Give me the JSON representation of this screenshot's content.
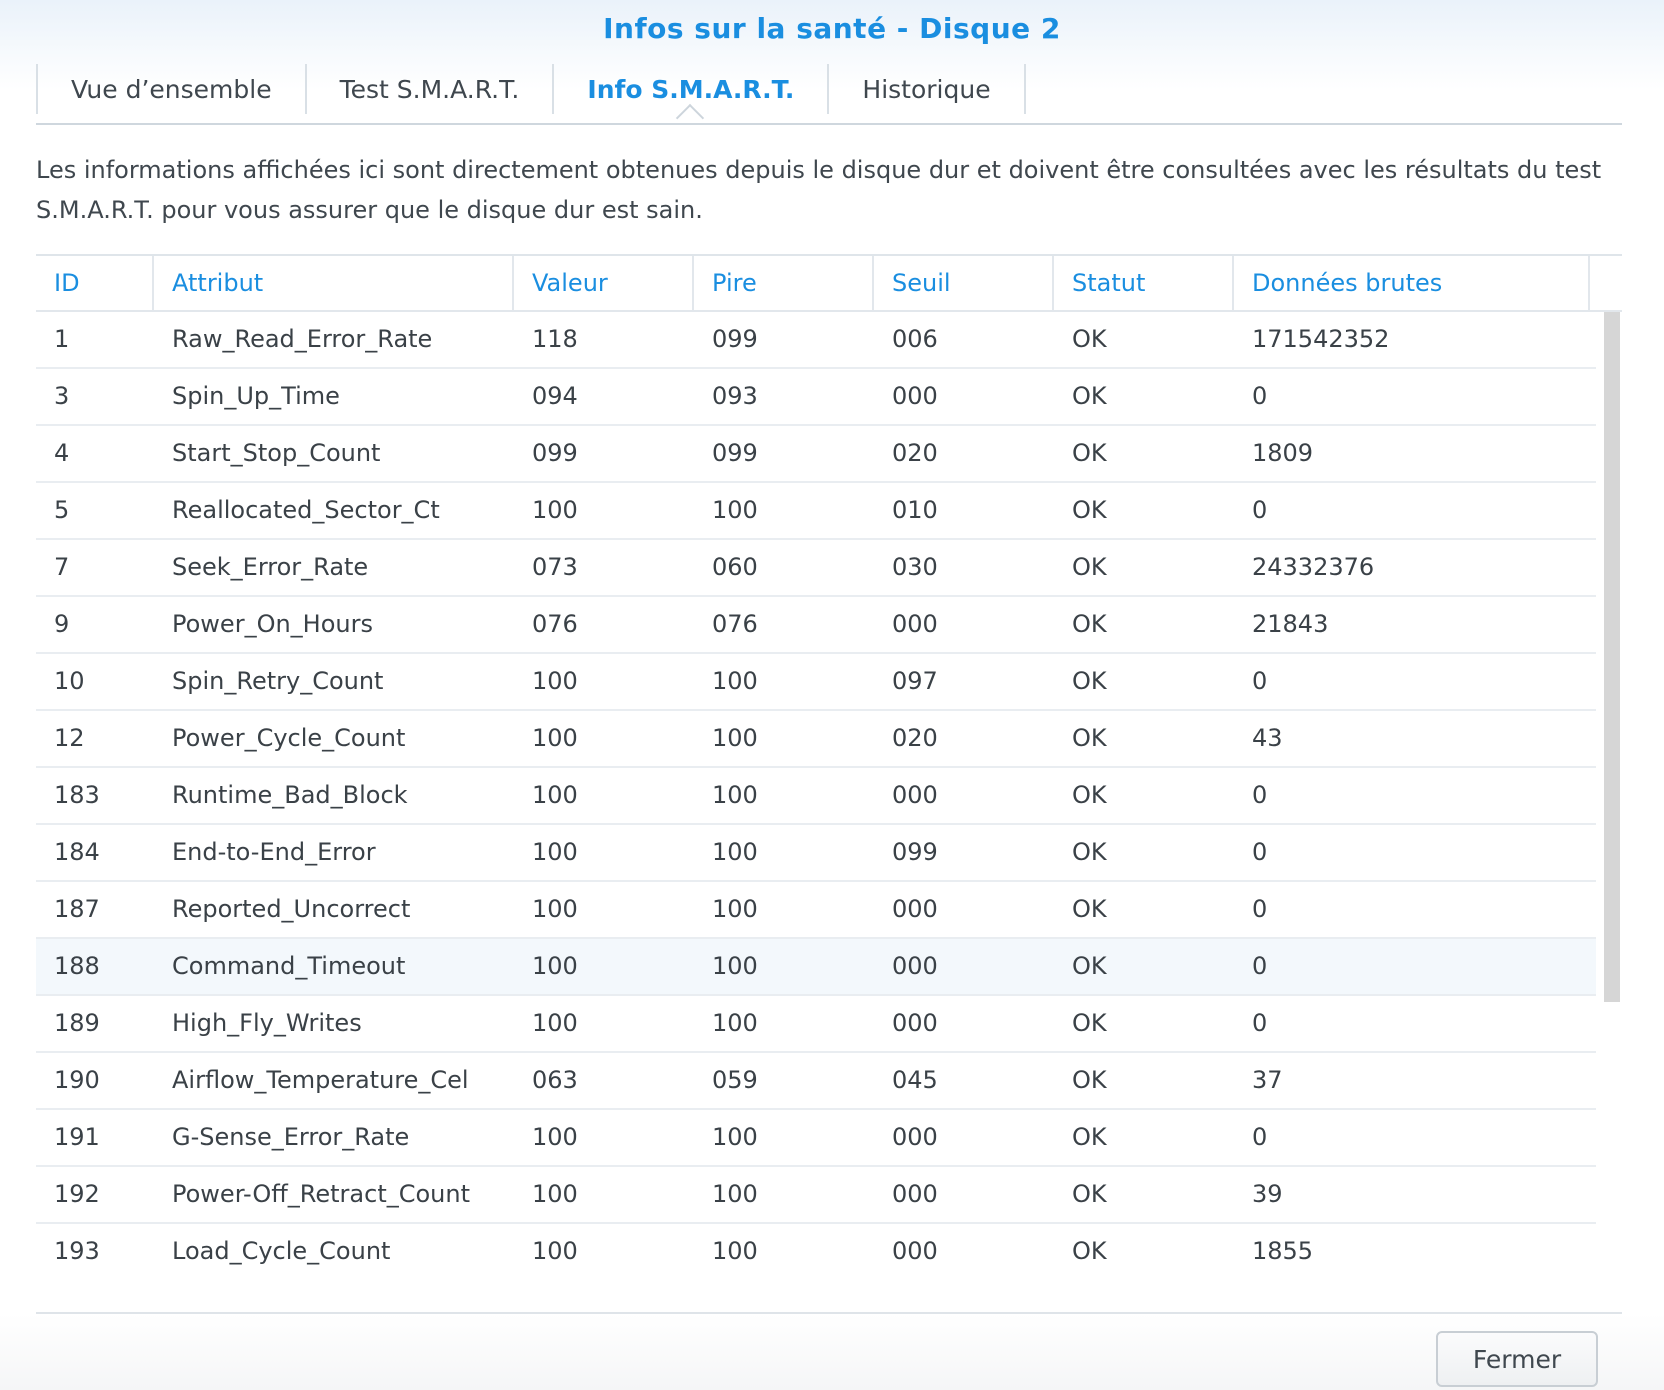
{
  "dialog": {
    "title": "Infos sur la santé - Disque 2",
    "close_label": "Fermer"
  },
  "tabs": [
    {
      "label": "Vue d’ensemble",
      "active": false
    },
    {
      "label": "Test S.M.A.R.T.",
      "active": false
    },
    {
      "label": "Info S.M.A.R.T.",
      "active": true
    },
    {
      "label": "Historique",
      "active": false
    }
  ],
  "description": "Les informations affichées ici sont directement obtenues depuis le disque dur et doivent être consultées avec les résultats du test S.M.A.R.T. pour vous assurer que le disque dur est sain.",
  "table": {
    "columns": [
      "ID",
      "Attribut",
      "Valeur",
      "Pire",
      "Seuil",
      "Statut",
      "Données brutes"
    ],
    "rows": [
      [
        "1",
        "Raw_Read_Error_Rate",
        "118",
        "099",
        "006",
        "OK",
        "171542352"
      ],
      [
        "3",
        "Spin_Up_Time",
        "094",
        "093",
        "000",
        "OK",
        "0"
      ],
      [
        "4",
        "Start_Stop_Count",
        "099",
        "099",
        "020",
        "OK",
        "1809"
      ],
      [
        "5",
        "Reallocated_Sector_Ct",
        "100",
        "100",
        "010",
        "OK",
        "0"
      ],
      [
        "7",
        "Seek_Error_Rate",
        "073",
        "060",
        "030",
        "OK",
        "24332376"
      ],
      [
        "9",
        "Power_On_Hours",
        "076",
        "076",
        "000",
        "OK",
        "21843"
      ],
      [
        "10",
        "Spin_Retry_Count",
        "100",
        "100",
        "097",
        "OK",
        "0"
      ],
      [
        "12",
        "Power_Cycle_Count",
        "100",
        "100",
        "020",
        "OK",
        "43"
      ],
      [
        "183",
        "Runtime_Bad_Block",
        "100",
        "100",
        "000",
        "OK",
        "0"
      ],
      [
        "184",
        "End-to-End_Error",
        "100",
        "100",
        "099",
        "OK",
        "0"
      ],
      [
        "187",
        "Reported_Uncorrect",
        "100",
        "100",
        "000",
        "OK",
        "0"
      ],
      [
        "188",
        "Command_Timeout",
        "100",
        "100",
        "000",
        "OK",
        "0"
      ],
      [
        "189",
        "High_Fly_Writes",
        "100",
        "100",
        "000",
        "OK",
        "0"
      ],
      [
        "190",
        "Airflow_Temperature_Cel",
        "063",
        "059",
        "045",
        "OK",
        "37"
      ],
      [
        "191",
        "G-Sense_Error_Rate",
        "100",
        "100",
        "000",
        "OK",
        "0"
      ],
      [
        "192",
        "Power-Off_Retract_Count",
        "100",
        "100",
        "000",
        "OK",
        "39"
      ],
      [
        "193",
        "Load_Cycle_Count",
        "100",
        "100",
        "000",
        "OK",
        "1855"
      ]
    ],
    "highlighted_row_index": 11
  },
  "colors": {
    "accent": "#1a8ee0",
    "text": "#3a4147",
    "row_highlight": "#f3f8fc",
    "scrollbar": "#d6d6d6"
  }
}
